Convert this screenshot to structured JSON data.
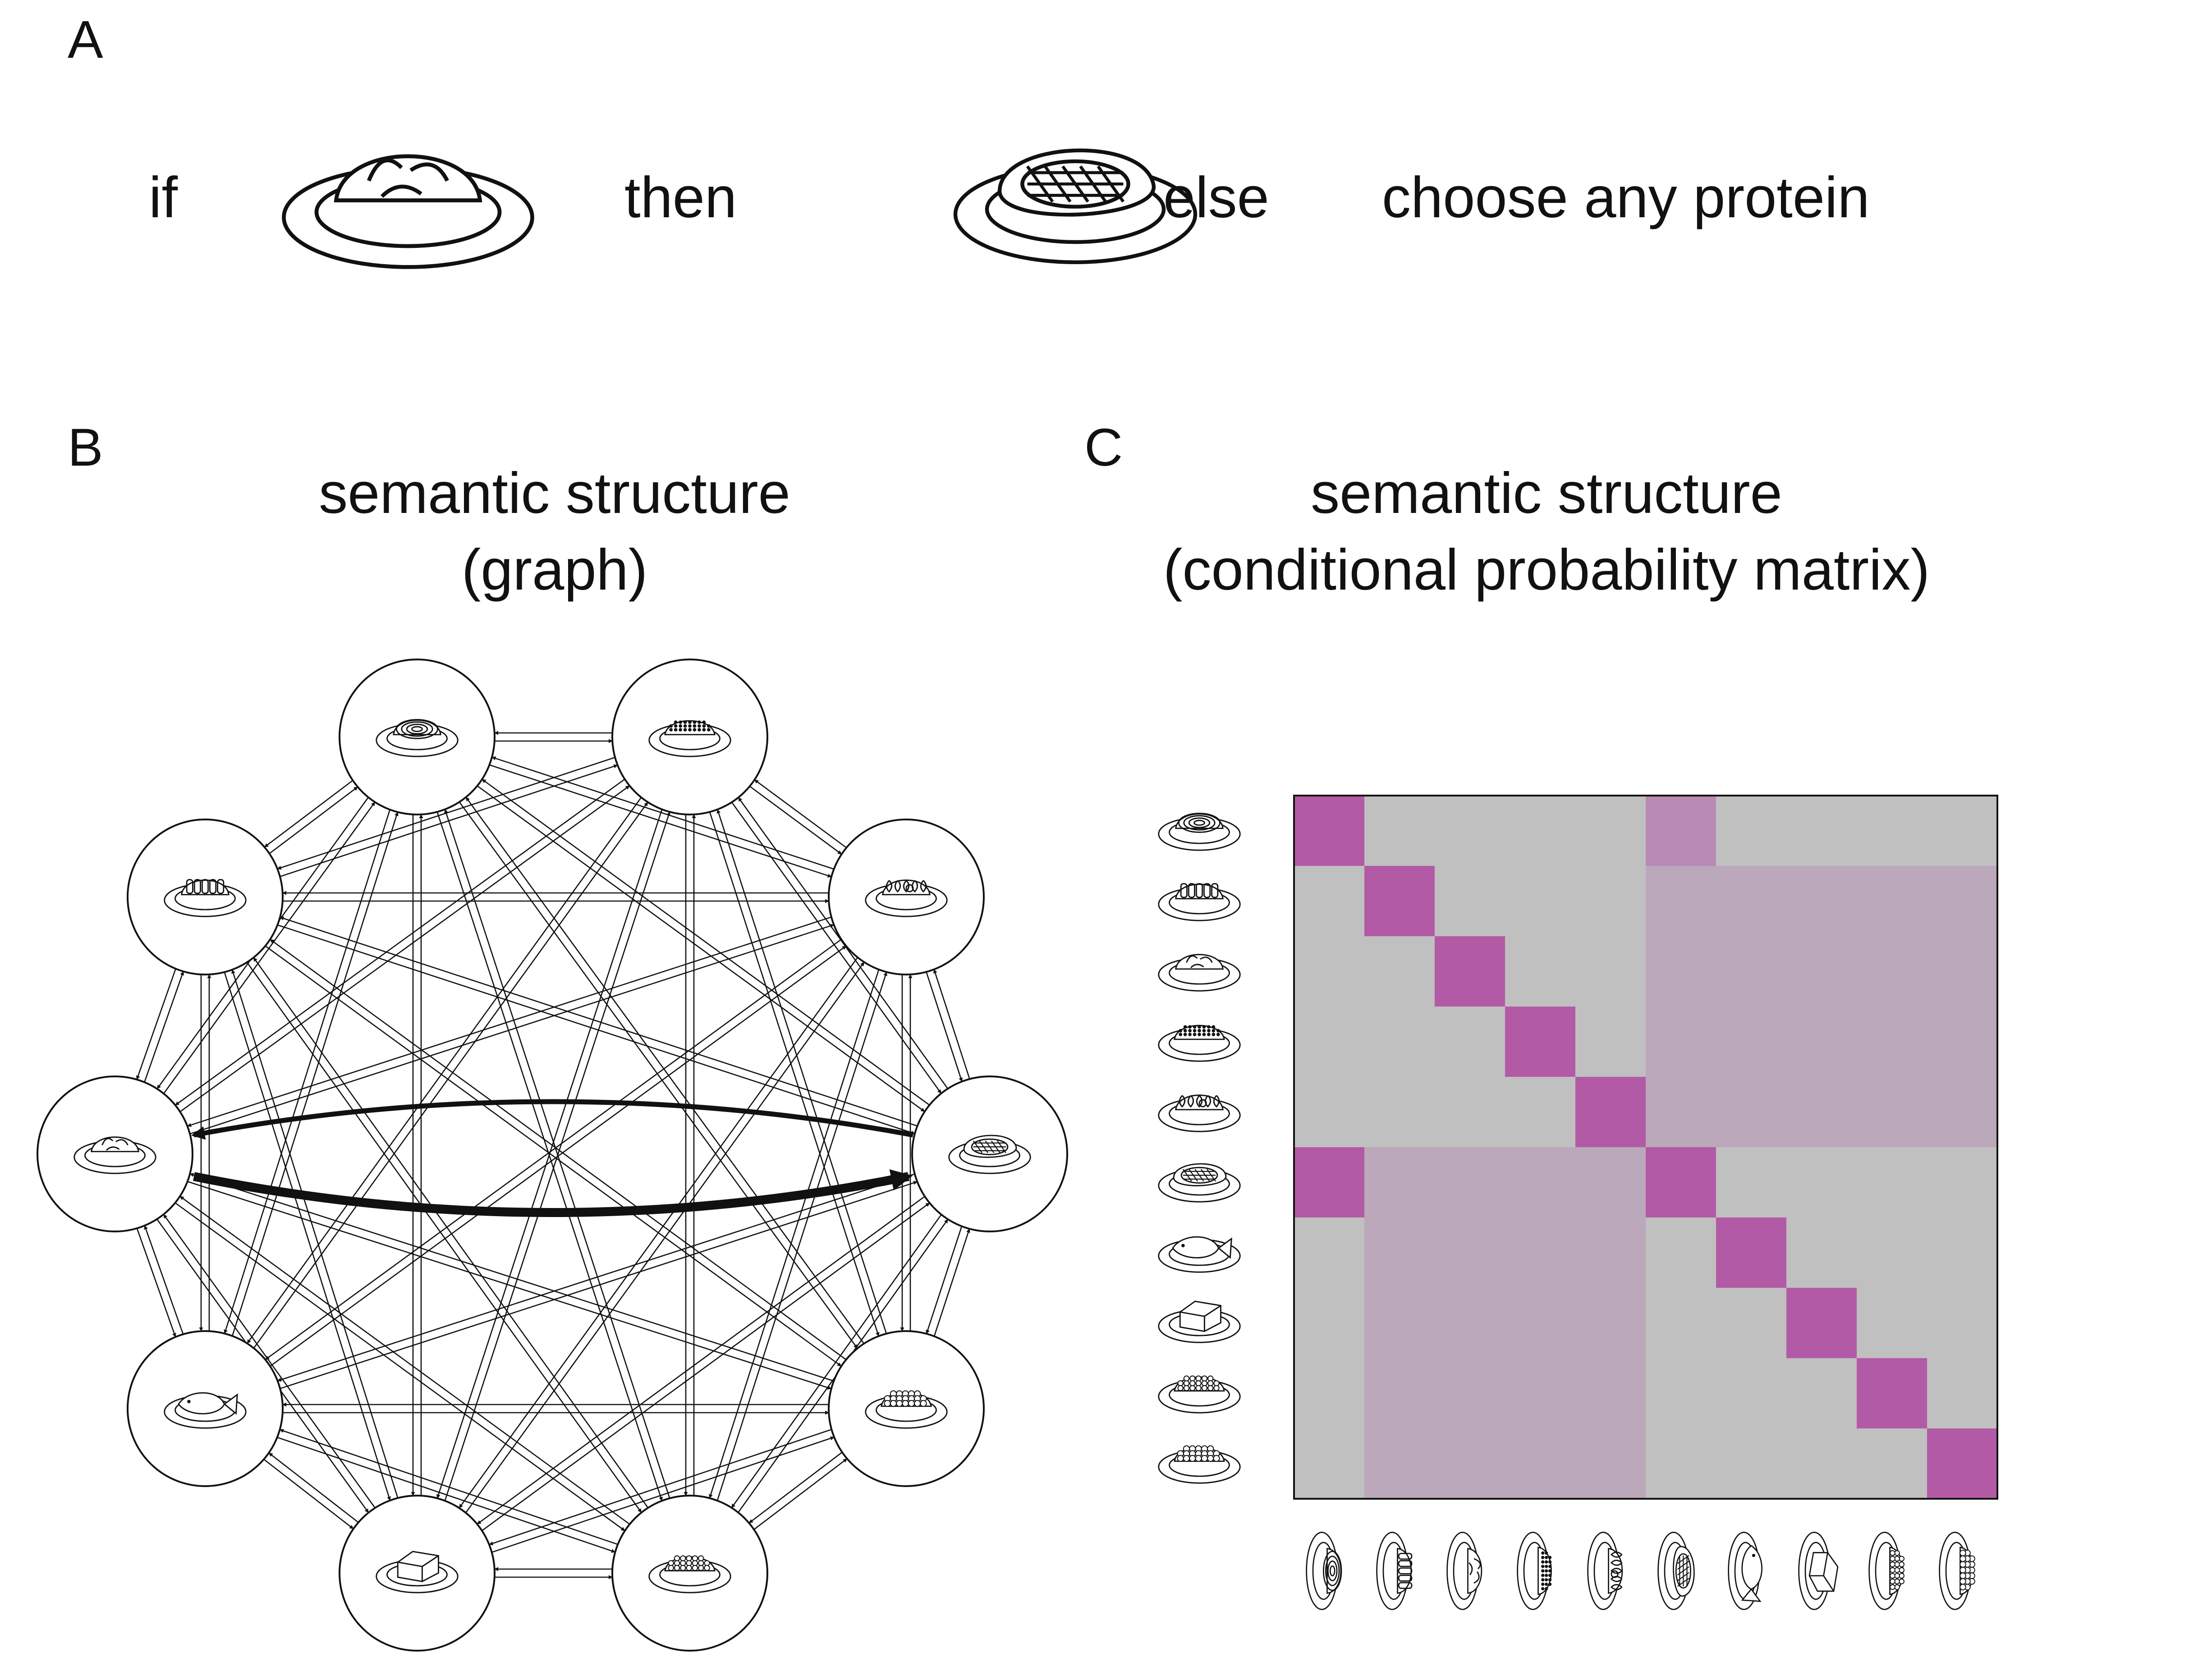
{
  "panel_a": {
    "label": "A",
    "rule": {
      "if": "if",
      "then": "then",
      "else": "else",
      "fallback": "choose any protein"
    },
    "if_icon": "macaroni-plate-icon",
    "then_icon": "steak-plate-icon"
  },
  "panel_b": {
    "label": "B",
    "title_line1": "semantic structure",
    "title_line2": "(graph)",
    "nodes": [
      "spaghetti",
      "couscous",
      "rotini",
      "salad",
      "macaroni",
      "steak",
      "fish",
      "tofu",
      "beans",
      "caviar"
    ],
    "node_icons": [
      "spaghetti-plate-icon",
      "couscous-plate-icon",
      "rotini-plate-icon",
      "salad-plate-icon",
      "macaroni-plate-icon",
      "steak-plate-icon",
      "fish-plate-icon",
      "tofu-plate-icon",
      "beans-plate-icon",
      "caviar-plate-icon"
    ],
    "strong_edges": [
      [
        "macaroni",
        "steak"
      ],
      [
        "steak",
        "macaroni"
      ]
    ]
  },
  "panel_c": {
    "label": "C",
    "title_line1": "semantic structure",
    "title_line2": "(conditional probability matrix)",
    "order": [
      "spaghetti",
      "rotini",
      "macaroni",
      "couscous",
      "salad",
      "steak",
      "fish",
      "tofu",
      "caviar",
      "beans"
    ],
    "row_icons": [
      "spaghetti-plate-icon",
      "rotini-plate-icon",
      "macaroni-plate-icon",
      "couscous-plate-icon",
      "salad-plate-icon",
      "steak-plate-icon",
      "fish-plate-icon",
      "tofu-plate-icon",
      "caviar-plate-icon",
      "beans-plate-icon"
    ],
    "colors": {
      "background": "#c0c0c0",
      "diagonal": "#b35aa6",
      "cross_block": "#bba8ba",
      "link": "#b88ab4"
    }
  }
}
